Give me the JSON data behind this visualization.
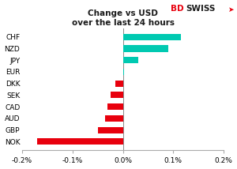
{
  "title_line1": "Change vs USD",
  "title_line2": "over the last 24 hours",
  "categories": [
    "CHF",
    "NZD",
    "JPY",
    "EUR",
    "DKK",
    "SEK",
    "CAD",
    "AUD",
    "GBP",
    "NOK"
  ],
  "values": [
    0.00115,
    0.0009,
    0.0003,
    2e-05,
    -0.00015,
    -0.00025,
    -0.0003,
    -0.00035,
    -0.0005,
    -0.0017
  ],
  "colors_positive": "#00c9b1",
  "colors_negative": "#e8000d",
  "xlim": [
    -0.002,
    0.002
  ],
  "xtick_vals": [
    -0.002,
    -0.001,
    0.0,
    0.001,
    0.002
  ],
  "xtick_labels": [
    "-0.2%",
    "-0.1%",
    "0.0%",
    "0.1%",
    "0.2%"
  ],
  "background_color": "#ffffff",
  "logo_bd": "BD",
  "logo_swiss": "SWISS",
  "logo_arrow": "↗",
  "logo_color_bd": "#e8000d",
  "logo_color_swiss": "#1a1a1a"
}
